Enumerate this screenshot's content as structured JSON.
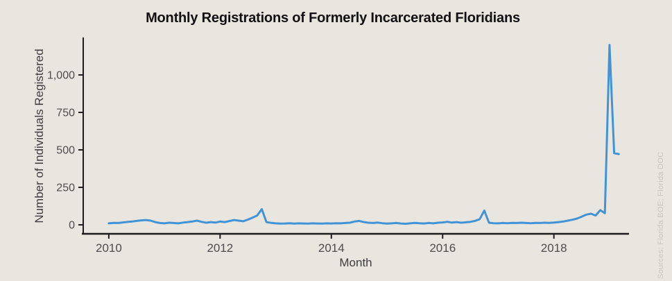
{
  "title": "Monthly Registrations of Formerly Incarcerated Floridians",
  "y_axis": {
    "title": "Number of Individuals Registered"
  },
  "x_axis": {
    "title": "Month"
  },
  "source": "Sources: Florida BOE; Florida DOC",
  "colors": {
    "background": "#e9e5df",
    "line": "#4193d5",
    "axis": "#1c1c1c",
    "tick_text": "#4d4d4d",
    "title_text": "#111111",
    "source_text": "#c9c5bf"
  },
  "chart_data": {
    "type": "line",
    "title": "Monthly Registrations of Formerly Incarcerated Floridians",
    "xlabel": "Month",
    "ylabel": "Number of Individuals Registered",
    "frequency": "monthly",
    "x_start": 2010,
    "x_step": 0.08333,
    "series": [
      {
        "name": "Individuals Registered",
        "values": [
          10,
          13,
          12,
          16,
          19,
          22,
          26,
          30,
          32,
          28,
          18,
          12,
          10,
          14,
          12,
          10,
          15,
          18,
          22,
          28,
          20,
          14,
          18,
          15,
          22,
          18,
          25,
          32,
          28,
          24,
          35,
          48,
          62,
          105,
          18,
          13,
          10,
          8,
          9,
          11,
          8,
          10,
          9,
          8,
          10,
          9,
          8,
          10,
          9,
          11,
          10,
          12,
          14,
          22,
          26,
          18,
          14,
          12,
          15,
          11,
          8,
          10,
          12,
          9,
          7,
          10,
          13,
          11,
          9,
          12,
          10,
          14,
          16,
          20,
          15,
          18,
          14,
          17,
          20,
          26,
          38,
          95,
          14,
          11,
          10,
          12,
          11,
          13,
          12,
          14,
          12,
          11,
          13,
          12,
          14,
          13,
          15,
          18,
          22,
          28,
          34,
          42,
          55,
          68,
          74,
          62,
          98,
          78,
          1200,
          478,
          472
        ]
      }
    ],
    "xlim": [
      2009.54,
      2019.35
    ],
    "ylim": [
      -60,
      1236
    ],
    "yticks": [
      {
        "v": 0,
        "label": "0"
      },
      {
        "v": 250,
        "label": "250"
      },
      {
        "v": 500,
        "label": "500"
      },
      {
        "v": 750,
        "label": "750"
      },
      {
        "v": 1000,
        "label": "1,000"
      }
    ],
    "xticks": [
      {
        "v": 2010,
        "label": "2010"
      },
      {
        "v": 2012,
        "label": "2012"
      },
      {
        "v": 2014,
        "label": "2014"
      },
      {
        "v": 2016,
        "label": "2016"
      },
      {
        "v": 2018,
        "label": "2018"
      }
    ],
    "grid": false,
    "legend_position": "none"
  }
}
